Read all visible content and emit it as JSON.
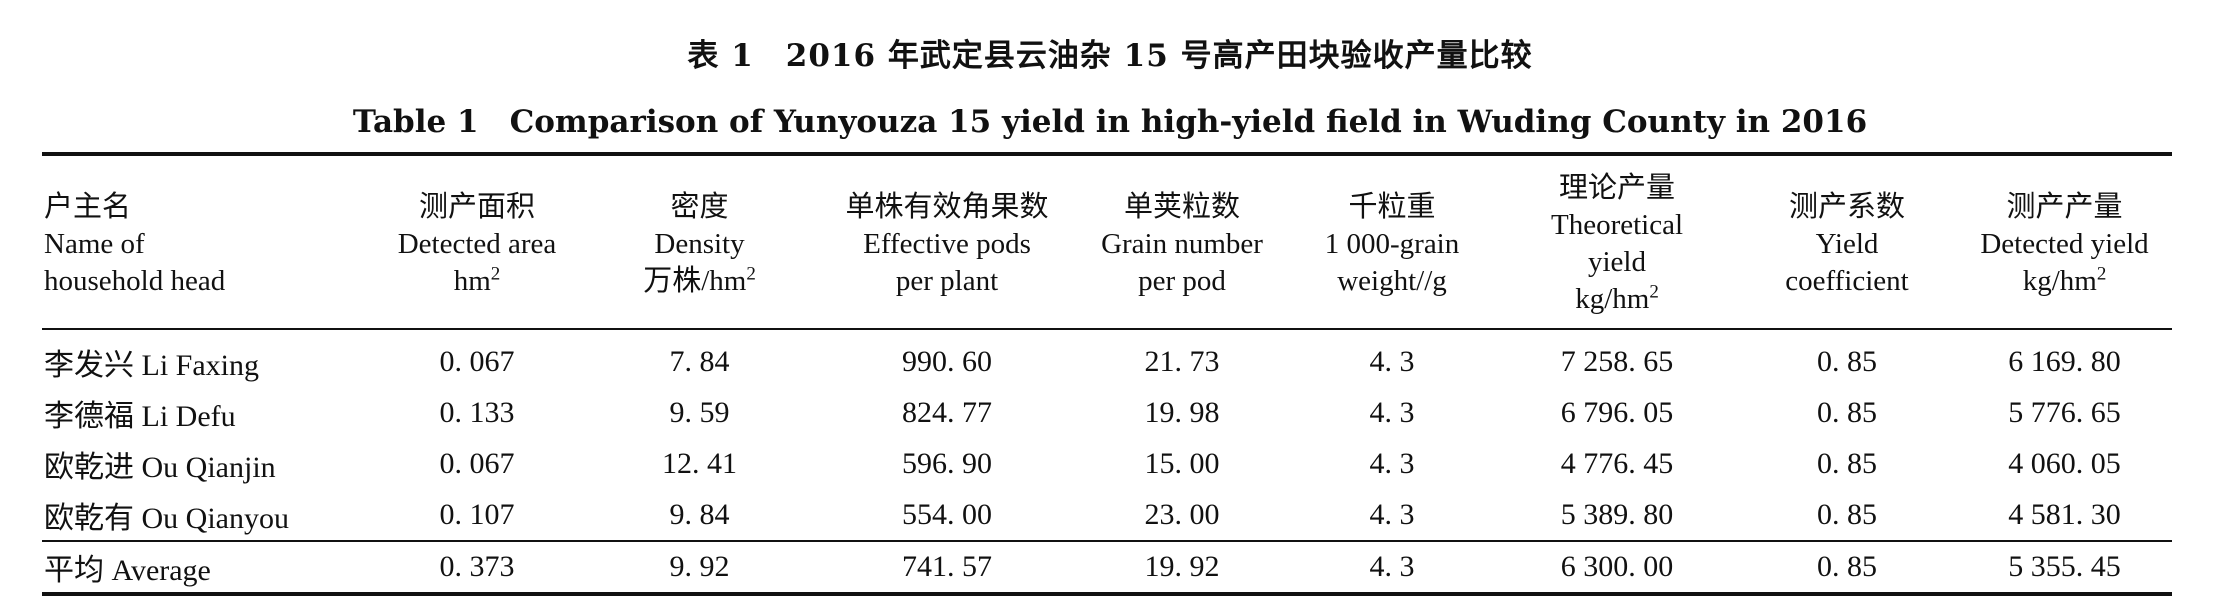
{
  "caption": {
    "cn": "表 1　2016 年武定县云油杂 15 号高产田块验收产量比较",
    "en": "Table 1　Comparison of Yunyouza 15 yield in high-yield field in Wuding County in 2016"
  },
  "columns": [
    {
      "cn": "户主名",
      "en1": "Name of",
      "en2": "household head",
      "unit": ""
    },
    {
      "cn": "测产面积",
      "en1": "Detected area",
      "en2": "",
      "unit": "hm",
      "sup": "2"
    },
    {
      "cn": "密度",
      "en1": "Density",
      "en2": "",
      "unit": "万株/hm",
      "sup": "2"
    },
    {
      "cn": "单株有效角果数",
      "en1": "Effective pods",
      "en2": "per plant",
      "unit": ""
    },
    {
      "cn": "单荚粒数",
      "en1": "Grain number",
      "en2": "per pod",
      "unit": ""
    },
    {
      "cn": "千粒重",
      "en1": "1 000-grain",
      "en2": "weight//g",
      "unit": ""
    },
    {
      "cn": "理论产量",
      "en1": "Theoretical",
      "en2": "yield",
      "unit": "kg/hm",
      "sup": "2"
    },
    {
      "cn": "测产系数",
      "en1": "Yield",
      "en2": "coefficient",
      "unit": ""
    },
    {
      "cn": "测产产量",
      "en1": "Detected yield",
      "en2": "",
      "unit": "kg/hm",
      "sup": "2"
    }
  ],
  "rows": [
    {
      "name": "李发兴 Li Faxing",
      "area": "0. 067",
      "density": "7. 84",
      "pods": "990. 60",
      "grains": "21. 73",
      "weight": "4. 3",
      "theoretical": "7 258. 65",
      "coef": "0. 85",
      "detected": "6 169. 80"
    },
    {
      "name": "李德福 Li Defu",
      "area": "0. 133",
      "density": "9. 59",
      "pods": "824. 77",
      "grains": "19. 98",
      "weight": "4. 3",
      "theoretical": "6 796. 05",
      "coef": "0. 85",
      "detected": "5 776. 65"
    },
    {
      "name": "欧乾进 Ou Qianjin",
      "area": "0. 067",
      "density": "12. 41",
      "pods": "596. 90",
      "grains": "15. 00",
      "weight": "4. 3",
      "theoretical": "4 776. 45",
      "coef": "0. 85",
      "detected": "4 060. 05"
    },
    {
      "name": "欧乾有 Ou Qianyou",
      "area": "0. 107",
      "density": "9. 84",
      "pods": "554. 00",
      "grains": "23. 00",
      "weight": "4. 3",
      "theoretical": "5 389. 80",
      "coef": "0. 85",
      "detected": "4 581. 30"
    }
  ],
  "average": {
    "name": "平均 Average",
    "area": "0. 373",
    "density": "9. 92",
    "pods": "741. 57",
    "grains": "19. 92",
    "weight": "4. 3",
    "theoretical": "6 300. 00",
    "coef": "0. 85",
    "detected": "5 355. 45"
  }
}
